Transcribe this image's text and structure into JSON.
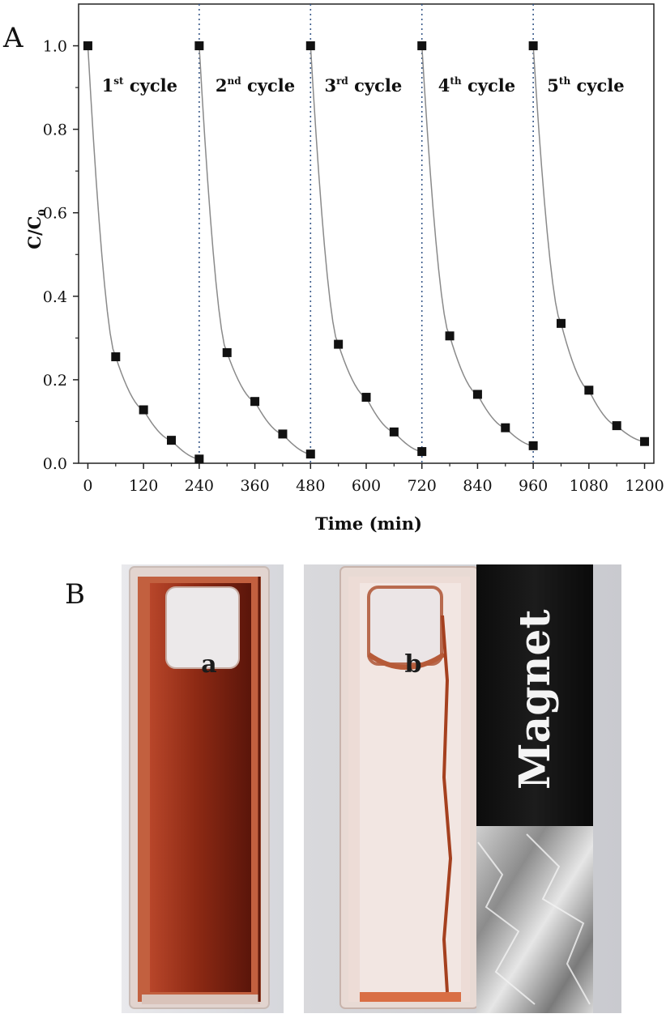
{
  "panels": {
    "a_label": "A",
    "b_label": "B"
  },
  "chart_data": {
    "type": "line",
    "xlabel": "Time (min)",
    "ylabel_main": "C/C",
    "ylabel_sub": "0",
    "xlim": [
      -20,
      1220
    ],
    "ylim": [
      0,
      1.1
    ],
    "x_ticks": [
      0,
      120,
      240,
      360,
      480,
      600,
      720,
      840,
      960,
      1080,
      1200
    ],
    "y_ticks": [
      0.0,
      0.2,
      0.4,
      0.6,
      0.8,
      1.0
    ],
    "y_tick_labels": [
      "0.0",
      "0.2",
      "0.4",
      "0.6",
      "0.8",
      "1.0"
    ],
    "grid": false,
    "series": [
      {
        "x": [
          0,
          60,
          120,
          180,
          240
        ],
        "y": [
          1.0,
          0.255,
          0.128,
          0.055,
          0.01
        ]
      },
      {
        "x": [
          240,
          300,
          360,
          420,
          480
        ],
        "y": [
          1.0,
          0.265,
          0.148,
          0.07,
          0.022
        ]
      },
      {
        "x": [
          480,
          540,
          600,
          660,
          720
        ],
        "y": [
          1.0,
          0.285,
          0.158,
          0.075,
          0.028
        ]
      },
      {
        "x": [
          720,
          780,
          840,
          900,
          960
        ],
        "y": [
          1.0,
          0.305,
          0.165,
          0.085,
          0.042
        ]
      },
      {
        "x": [
          960,
          1020,
          1080,
          1140,
          1200
        ],
        "y": [
          1.0,
          0.335,
          0.175,
          0.09,
          0.052
        ]
      }
    ],
    "dividers_x": [
      240,
      480,
      720,
      960
    ],
    "cycle_labels": [
      {
        "num": "1",
        "sup": "st",
        "word": " cycle",
        "x": 30
      },
      {
        "num": "2",
        "sup": "nd",
        "word": " cycle",
        "x": 275
      },
      {
        "num": "3",
        "sup": "rd",
        "word": " cycle",
        "x": 510
      },
      {
        "num": "4",
        "sup": "th",
        "word": " cycle",
        "x": 755
      },
      {
        "num": "5",
        "sup": "th",
        "word": " cycle",
        "x": 990
      }
    ],
    "cycle_label_y": 0.91,
    "colors": {
      "line": "#8a8a8a",
      "marker": "#111111",
      "divider": "#3a5a8a"
    }
  },
  "photos": {
    "left_label": "a",
    "right_label": "b",
    "magnet_label": "Magnet"
  }
}
